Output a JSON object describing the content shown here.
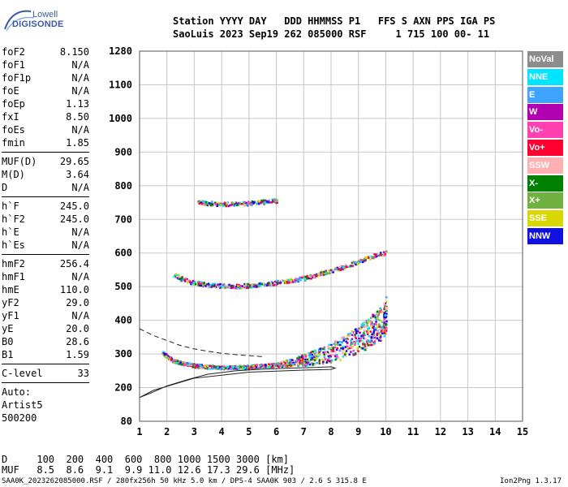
{
  "logo": {
    "line1": "Lowell",
    "line2": "DIGISONDE"
  },
  "header": {
    "labels": "Station YYYY DAY   DDD HHMMSS P1   FFS S AXN PPS IGA PS",
    "values": "SaoLuis 2023 Sep19 262 085000 RSF     1 715 100 00- 11"
  },
  "params": {
    "group1": [
      {
        "name": "foF2",
        "value": "8.150"
      },
      {
        "name": "foF1",
        "value": "N/A"
      },
      {
        "name": "foF1p",
        "value": "N/A"
      },
      {
        "name": "foE",
        "value": "N/A"
      },
      {
        "name": "foEp",
        "value": "1.13"
      },
      {
        "name": "fxI",
        "value": "8.50"
      },
      {
        "name": "foEs",
        "value": "N/A"
      },
      {
        "name": "fmin",
        "value": "1.85"
      }
    ],
    "group2": [
      {
        "name": "MUF(D)",
        "value": "29.65"
      },
      {
        "name": "M(D)",
        "value": "3.64"
      },
      {
        "name": "D",
        "value": "N/A"
      }
    ],
    "group3": [
      {
        "name": "h`F",
        "value": "245.0"
      },
      {
        "name": "h`F2",
        "value": "245.0"
      },
      {
        "name": "h`E",
        "value": "N/A"
      },
      {
        "name": "h`Es",
        "value": "N/A"
      }
    ],
    "group4": [
      {
        "name": "hmF2",
        "value": "256.4"
      },
      {
        "name": "hmF1",
        "value": "N/A"
      },
      {
        "name": "hmE",
        "value": "110.0"
      },
      {
        "name": "yF2",
        "value": "29.0"
      },
      {
        "name": "yF1",
        "value": "N/A"
      },
      {
        "name": "yE",
        "value": "20.0"
      },
      {
        "name": "B0",
        "value": "28.6"
      },
      {
        "name": "B1",
        "value": "1.59"
      }
    ],
    "clevel": {
      "name": "C-level",
      "value": "33"
    },
    "auto": [
      "Auto:",
      "Artist5",
      "500200"
    ]
  },
  "legend": [
    {
      "label": "NoVal",
      "color": "#8c8c8c"
    },
    {
      "label": "NNE",
      "color": "#00e5ff"
    },
    {
      "label": "E",
      "color": "#3fa4ff"
    },
    {
      "label": "W",
      "color": "#b000b0"
    },
    {
      "label": "Vo-",
      "color": "#ff40b0"
    },
    {
      "label": "Vo+",
      "color": "#ff0030"
    },
    {
      "label": "SSW",
      "color": "#ffb0b0"
    },
    {
      "label": "X-",
      "color": "#008000"
    },
    {
      "label": "X+",
      "color": "#70b040"
    },
    {
      "label": "SSE",
      "color": "#d8d800"
    },
    {
      "label": "NNW",
      "color": "#1010e0"
    }
  ],
  "chart_data": {
    "type": "scatter",
    "title": "",
    "xlabel": "",
    "ylabel": "",
    "x_ticks": [
      "1",
      "2",
      "3",
      "4",
      "5",
      "6",
      "7",
      "8",
      "9",
      "10",
      "11",
      "12",
      "13",
      "14",
      "15"
    ],
    "y_ticks": [
      "1280",
      "1100",
      "1000",
      "900",
      "800",
      "700",
      "600",
      "500",
      "400",
      "300",
      "200",
      "80"
    ],
    "xlim": [
      1,
      15
    ],
    "ylim_ticks": [
      1280,
      1100,
      1000,
      900,
      800,
      700,
      600,
      500,
      400,
      300,
      200,
      80
    ],
    "grid": true,
    "series": [
      {
        "x": [
          1.8,
          2.2,
          2.6,
          3.0,
          3.5,
          4.0,
          4.5,
          5.0,
          5.5,
          6.0,
          6.5,
          7.0,
          7.5,
          8.0,
          8.5,
          9.0,
          9.3,
          9.6,
          9.9,
          10.0
        ],
        "y": [
          305,
          280,
          272,
          265,
          262,
          260,
          260,
          262,
          265,
          268,
          272,
          278,
          285,
          295,
          310,
          330,
          345,
          360,
          380,
          400
        ]
      },
      {
        "x": [
          2.2,
          2.6,
          3.0,
          3.5,
          4.0,
          4.5,
          5.0,
          5.5,
          6.0,
          6.5,
          7.0,
          7.5,
          8.0,
          8.5,
          9.0,
          9.5,
          10.0
        ],
        "y": [
          535,
          520,
          510,
          505,
          502,
          501,
          503,
          507,
          512,
          518,
          525,
          535,
          548,
          560,
          575,
          590,
          600
        ]
      },
      {
        "x": [
          3.1,
          3.5,
          4.0,
          4.5,
          5.0,
          5.5,
          6.0
        ],
        "y": [
          750,
          748,
          745,
          746,
          748,
          752,
          755
        ]
      }
    ],
    "lines": [
      {
        "style": "solid",
        "x": [
          1.0,
          1.4,
          2.0,
          2.8,
          3.5,
          4.5,
          5.5,
          6.5,
          7.5,
          8.0,
          8.15,
          8.0,
          7.0,
          5.0,
          3.0,
          1.5,
          1.0
        ],
        "y": [
          165,
          180,
          205,
          225,
          240,
          250,
          255,
          258,
          260,
          262,
          258,
          254,
          252,
          246,
          228,
          190,
          165
        ]
      },
      {
        "style": "dashed",
        "x": [
          1.0,
          1.5,
          2.0,
          2.5,
          3.0,
          3.5,
          4.0,
          4.5,
          5.0,
          5.5
        ],
        "y": [
          375,
          355,
          340,
          325,
          315,
          308,
          302,
          298,
          295,
          292
        ]
      }
    ]
  },
  "footer": {
    "d_row": "D     100  200  400  600  800 1000 1500 3000 [km]",
    "muf_row": "MUF   8.5  8.6  9.1  9.9 11.0 12.6 17.3 29.6 [MHz]",
    "info": "SAA0K_2023262085000.RSF / 280fx256h 50 kHz 5.0 km / DPS-4 SAA0K 903 / 2.6 S 315.8 E",
    "version": "Ion2Png 1.3.17"
  }
}
